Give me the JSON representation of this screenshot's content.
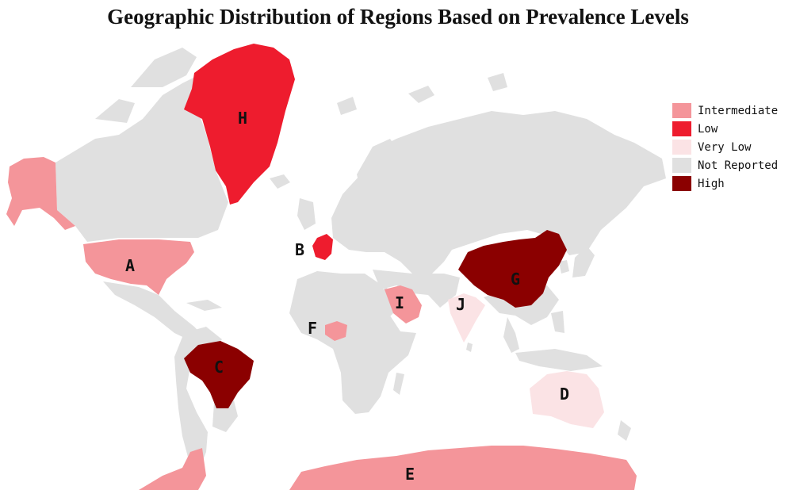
{
  "title": "Geographic Distribution of Regions Based on Prevalence Levels",
  "colors": {
    "Intermediate": "#f4959a",
    "Low": "#ee1c2e",
    "Very Low": "#fbe3e5",
    "Not Reported": "#e0e0e0",
    "High": "#8b0000"
  },
  "legend": [
    {
      "label": "Intermediate",
      "level": "Intermediate"
    },
    {
      "label": "Low",
      "level": "Low"
    },
    {
      "label": "Very Low",
      "level": "Very Low"
    },
    {
      "label": "Not Reported",
      "level": "Not Reported"
    },
    {
      "label": "High",
      "level": "High"
    }
  ],
  "regions": [
    {
      "id": "alaska",
      "level": "Intermediate"
    },
    {
      "id": "usa",
      "label": "A",
      "level": "Intermediate"
    },
    {
      "id": "france",
      "label": "B",
      "level": "Low"
    },
    {
      "id": "brazil",
      "label": "C",
      "level": "High"
    },
    {
      "id": "australia",
      "label": "D",
      "level": "Very Low"
    },
    {
      "id": "antarctica",
      "label": "E",
      "level": "Intermediate"
    },
    {
      "id": "nigeria",
      "label": "F",
      "level": "Intermediate"
    },
    {
      "id": "china",
      "label": "G",
      "level": "High"
    },
    {
      "id": "greenland",
      "label": "H",
      "level": "Low"
    },
    {
      "id": "saudi-arabia",
      "label": "I",
      "level": "Intermediate"
    },
    {
      "id": "india",
      "label": "J",
      "level": "Very Low"
    }
  ]
}
